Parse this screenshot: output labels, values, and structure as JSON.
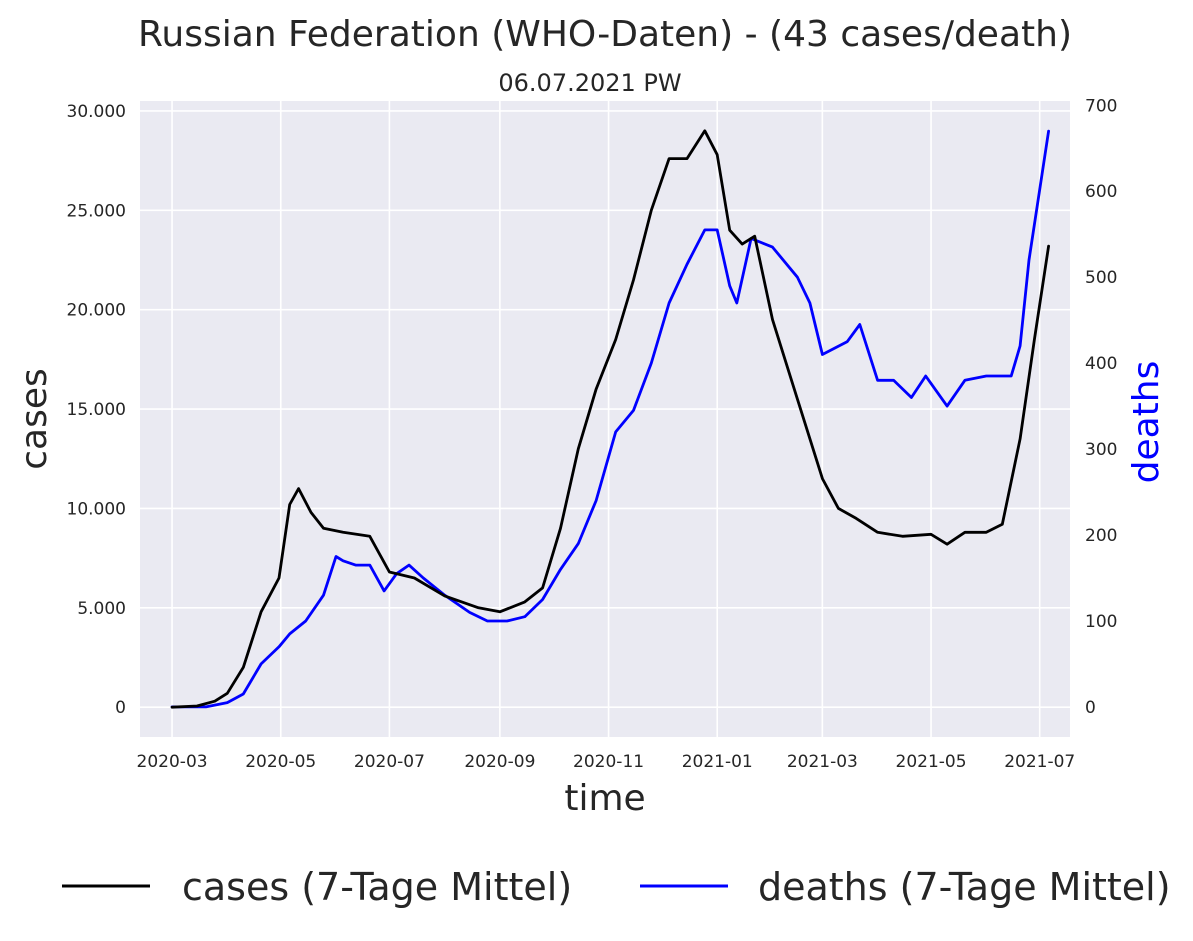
{
  "chart_data": {
    "type": "line",
    "title": "Russian Federation (WHO-Daten) - (43 cases/death)",
    "subtitle": "06.07.2021 PW",
    "xlabel": "time",
    "ylabel_left": "cases",
    "ylabel_right": "deaths",
    "x_ticks": [
      "2020-03",
      "2020-05",
      "2020-07",
      "2020-09",
      "2020-11",
      "2021-01",
      "2021-03",
      "2021-05",
      "2021-07"
    ],
    "y_left_ticks": [
      "0",
      "5.000",
      "10.000",
      "15.000",
      "20.000",
      "25.000",
      "30.000"
    ],
    "y_right_ticks": [
      "0",
      "100",
      "200",
      "300",
      "400",
      "500",
      "600",
      "700"
    ],
    "y_left_range": [
      -1500,
      30500
    ],
    "y_right_range": [
      -35,
      705
    ],
    "grid": true,
    "legend_position": "bottom",
    "colors": {
      "cases": "#000000",
      "deaths": "#0000ff",
      "background": "#eaeaf2"
    },
    "series": [
      {
        "name": "cases (7-Tage Mittel)",
        "axis": "left",
        "points": [
          [
            "2020-03-01",
            0
          ],
          [
            "2020-03-15",
            60
          ],
          [
            "2020-03-25",
            300
          ],
          [
            "2020-04-01",
            700
          ],
          [
            "2020-04-10",
            2000
          ],
          [
            "2020-04-20",
            4800
          ],
          [
            "2020-04-30",
            6500
          ],
          [
            "2020-05-06",
            10200
          ],
          [
            "2020-05-11",
            11000
          ],
          [
            "2020-05-18",
            9800
          ],
          [
            "2020-05-25",
            9000
          ],
          [
            "2020-06-05",
            8800
          ],
          [
            "2020-06-20",
            8600
          ],
          [
            "2020-07-01",
            6800
          ],
          [
            "2020-07-15",
            6500
          ],
          [
            "2020-08-01",
            5600
          ],
          [
            "2020-08-20",
            5000
          ],
          [
            "2020-09-01",
            4800
          ],
          [
            "2020-09-15",
            5300
          ],
          [
            "2020-09-25",
            6000
          ],
          [
            "2020-10-05",
            9000
          ],
          [
            "2020-10-15",
            13000
          ],
          [
            "2020-10-25",
            16000
          ],
          [
            "2020-11-05",
            18500
          ],
          [
            "2020-11-15",
            21500
          ],
          [
            "2020-11-25",
            25000
          ],
          [
            "2020-12-05",
            27600
          ],
          [
            "2020-12-15",
            27600
          ],
          [
            "2020-12-25",
            29000
          ],
          [
            "2021-01-01",
            27800
          ],
          [
            "2021-01-08",
            24000
          ],
          [
            "2021-01-15",
            23300
          ],
          [
            "2021-01-22",
            23700
          ],
          [
            "2021-02-01",
            19500
          ],
          [
            "2021-02-15",
            15500
          ],
          [
            "2021-03-01",
            11500
          ],
          [
            "2021-03-10",
            10000
          ],
          [
            "2021-03-20",
            9500
          ],
          [
            "2021-04-01",
            8800
          ],
          [
            "2021-04-15",
            8600
          ],
          [
            "2021-05-01",
            8700
          ],
          [
            "2021-05-10",
            8200
          ],
          [
            "2021-05-20",
            8800
          ],
          [
            "2021-06-01",
            8800
          ],
          [
            "2021-06-10",
            9200
          ],
          [
            "2021-06-20",
            13500
          ],
          [
            "2021-06-28",
            18500
          ],
          [
            "2021-07-06",
            23200
          ]
        ]
      },
      {
        "name": "deaths (7-Tage Mittel)",
        "axis": "right",
        "points": [
          [
            "2020-03-01",
            0
          ],
          [
            "2020-03-20",
            0
          ],
          [
            "2020-04-01",
            5
          ],
          [
            "2020-04-10",
            15
          ],
          [
            "2020-04-20",
            50
          ],
          [
            "2020-04-30",
            70
          ],
          [
            "2020-05-06",
            85
          ],
          [
            "2020-05-15",
            100
          ],
          [
            "2020-05-25",
            130
          ],
          [
            "2020-06-01",
            175
          ],
          [
            "2020-06-05",
            170
          ],
          [
            "2020-06-12",
            165
          ],
          [
            "2020-06-20",
            165
          ],
          [
            "2020-06-28",
            135
          ],
          [
            "2020-07-05",
            155
          ],
          [
            "2020-07-12",
            165
          ],
          [
            "2020-07-20",
            150
          ],
          [
            "2020-08-01",
            130
          ],
          [
            "2020-08-15",
            110
          ],
          [
            "2020-08-25",
            100
          ],
          [
            "2020-09-05",
            100
          ],
          [
            "2020-09-15",
            105
          ],
          [
            "2020-09-25",
            125
          ],
          [
            "2020-10-05",
            160
          ],
          [
            "2020-10-15",
            190
          ],
          [
            "2020-10-25",
            240
          ],
          [
            "2020-11-05",
            320
          ],
          [
            "2020-11-15",
            345
          ],
          [
            "2020-11-25",
            400
          ],
          [
            "2020-12-05",
            470
          ],
          [
            "2020-12-15",
            515
          ],
          [
            "2020-12-25",
            555
          ],
          [
            "2021-01-01",
            555
          ],
          [
            "2021-01-08",
            490
          ],
          [
            "2021-01-12",
            470
          ],
          [
            "2021-01-20",
            545
          ],
          [
            "2021-02-01",
            535
          ],
          [
            "2021-02-15",
            500
          ],
          [
            "2021-02-22",
            470
          ],
          [
            "2021-03-01",
            410
          ],
          [
            "2021-03-15",
            425
          ],
          [
            "2021-03-22",
            445
          ],
          [
            "2021-04-01",
            380
          ],
          [
            "2021-04-10",
            380
          ],
          [
            "2021-04-20",
            360
          ],
          [
            "2021-04-28",
            385
          ],
          [
            "2021-05-10",
            350
          ],
          [
            "2021-05-20",
            380
          ],
          [
            "2021-06-01",
            385
          ],
          [
            "2021-06-15",
            385
          ],
          [
            "2021-06-20",
            420
          ],
          [
            "2021-06-25",
            520
          ],
          [
            "2021-07-06",
            670
          ]
        ]
      }
    ]
  }
}
